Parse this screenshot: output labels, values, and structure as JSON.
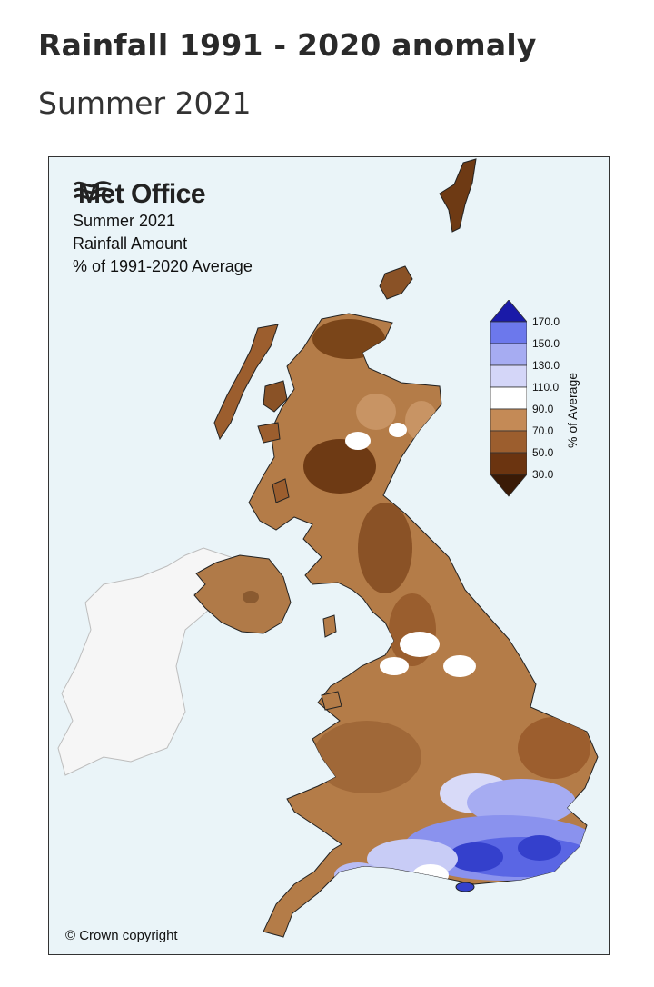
{
  "header": {
    "title": "Rainfall 1991 - 2020 anomaly",
    "subtitle": "Summer 2021"
  },
  "map": {
    "brand": "Met Office",
    "lines": [
      "Summer 2021",
      "Rainfall Amount",
      "% of 1991-2020 Average"
    ],
    "copyright": "© Crown copyright",
    "legend": {
      "axis_label": "% of Average",
      "ticks": [
        "170.0",
        "150.0",
        "130.0",
        "110.0",
        "90.0",
        "70.0",
        "50.0",
        "30.0"
      ],
      "colors": [
        "#2020b0",
        "#6c78ec",
        "#a6acf2",
        "#d4d6f8",
        "#ffffff",
        "#c48a56",
        "#9c5e2e",
        "#6b3410",
        "#3a1a06"
      ]
    },
    "colors": {
      "sea": "#eaf4f8",
      "ireland": "#f7f7f7",
      "land_default": "#b87f4c",
      "wet_region": "#7e88ee",
      "very_wet": "#3040c8"
    }
  }
}
